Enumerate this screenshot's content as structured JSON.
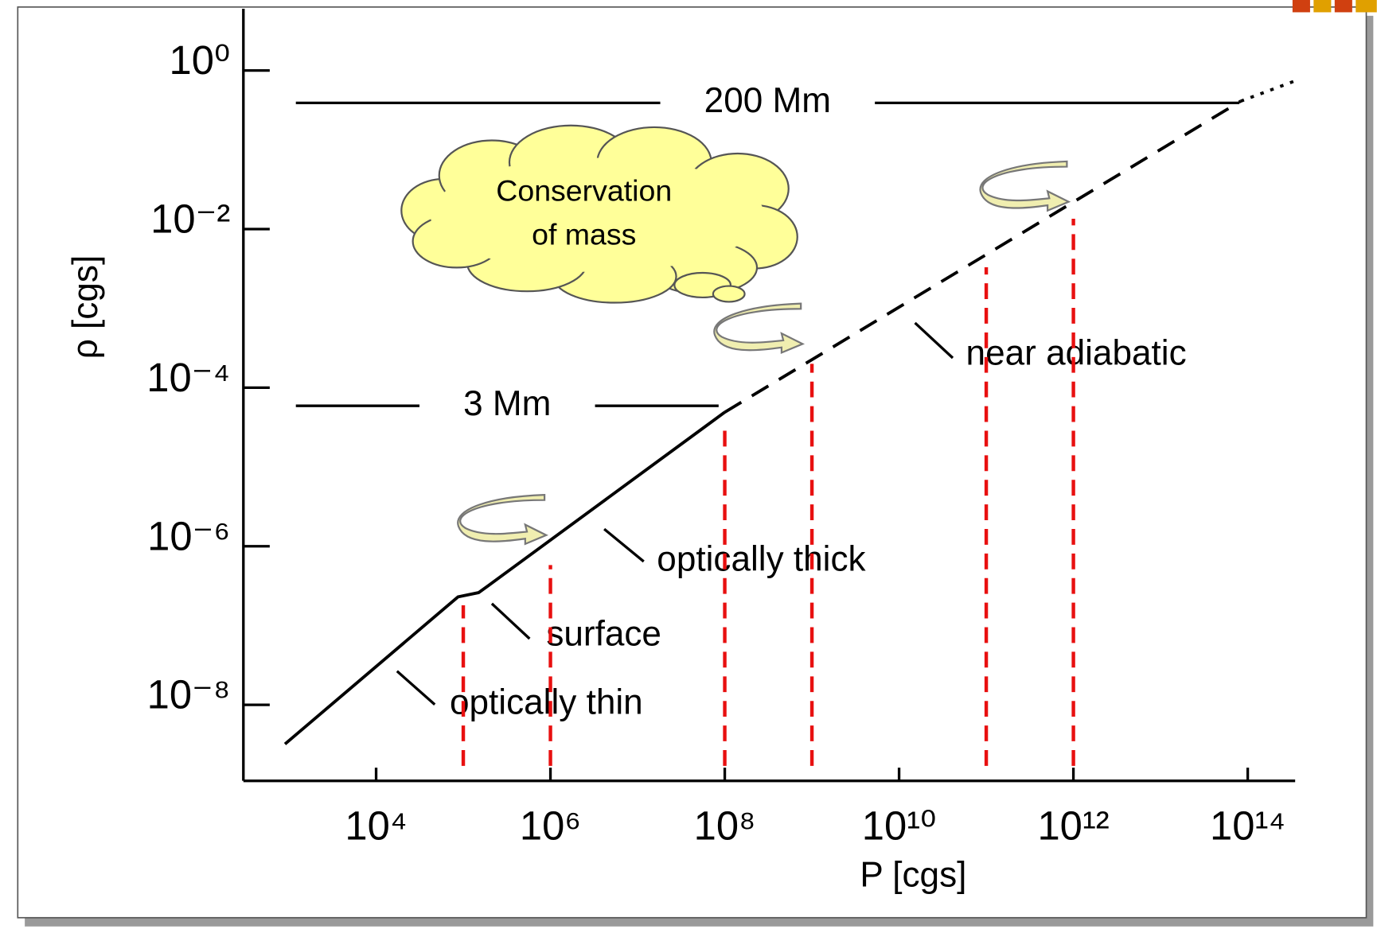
{
  "chart_data": {
    "type": "line",
    "xlabel": "P [cgs]",
    "ylabel": "ρ [cgs]",
    "log_x": true,
    "log_y": true,
    "xlim": [
      300,
      350000000000000.0
    ],
    "ylim": [
      1.1e-09,
      6
    ],
    "xticks": [
      {
        "value": 10000.0,
        "label": "10⁴"
      },
      {
        "value": 1000000.0,
        "label": "10⁶"
      },
      {
        "value": 100000000.0,
        "label": "10⁸"
      },
      {
        "value": 10000000000.0,
        "label": "10¹⁰"
      },
      {
        "value": 1000000000000.0,
        "label": "10¹²"
      },
      {
        "value": 100000000000000.0,
        "label": "10¹⁴"
      }
    ],
    "yticks": [
      {
        "value": 1,
        "label": "10⁰"
      },
      {
        "value": 0.01,
        "label": "10⁻²"
      },
      {
        "value": 0.0001,
        "label": "10⁻⁴"
      },
      {
        "value": 1e-06,
        "label": "10⁻⁶"
      },
      {
        "value": 1e-08,
        "label": "10⁻⁸"
      }
    ],
    "series": [
      {
        "color": "#000000",
        "style": "solid",
        "x": [
          900,
          87000.0,
          150000.0,
          195000.0,
          100000000.0
        ],
        "values": [
          3.2e-09,
          2.3e-07,
          2.6e-07,
          3.2e-07,
          4.9e-05
        ]
      },
      {
        "color": "#000000",
        "style": "dashed",
        "x": [
          100000000.0,
          83000000000000.0
        ],
        "values": [
          4.9e-05,
          0.41
        ]
      },
      {
        "color": "#000000",
        "style": "dotted",
        "x": [
          83000000000000.0,
          350000000000000.0
        ],
        "values": [
          0.41,
          0.74
        ]
      }
    ],
    "vlines": {
      "color": "#e81010",
      "x": [
        100000.0,
        1000000.0,
        100000000.0,
        1000000000.0,
        100000000000.0,
        1000000000000.0
      ],
      "top": [
        1.8e-07,
        5.8e-07,
        2.9e-05,
        0.0002,
        0.0033,
        0.0135
      ],
      "bottom": 1.7e-09
    },
    "scale_bars": [
      {
        "text": "200 Mm",
        "y": 0.39,
        "x": [
          1200.0,
          80000000000000.0
        ]
      },
      {
        "text": "3 Mm",
        "y": 5.9e-05,
        "x": [
          1200.0,
          85000000.0
        ]
      }
    ],
    "labels": [
      "optically thin",
      "surface",
      "optically thick",
      "near adiabatic"
    ],
    "callout": [
      "Conservation",
      "of mass"
    ]
  }
}
